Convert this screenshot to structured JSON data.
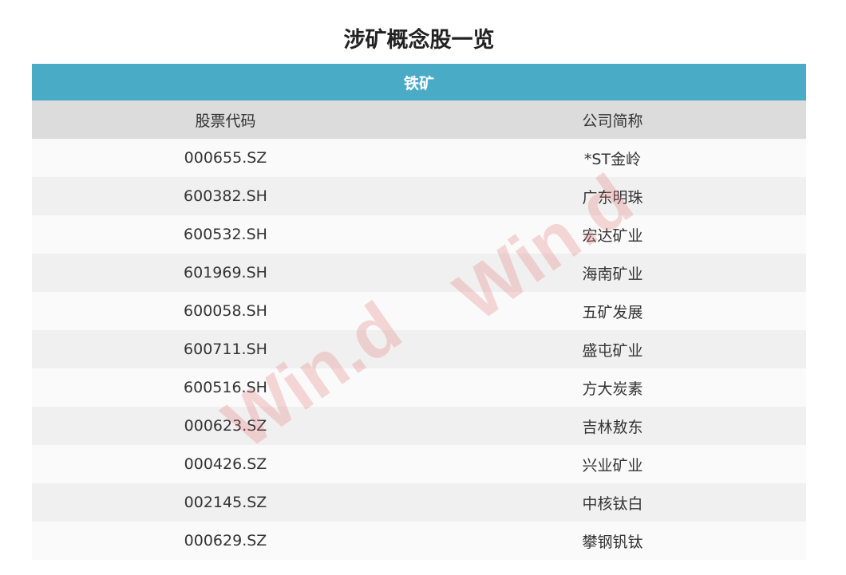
{
  "title": "涉矿概念股一览",
  "category": "铁矿",
  "columns": [
    "股票代码",
    "公司简称"
  ],
  "rows": [
    [
      "000655.SZ",
      "*ST金岭"
    ],
    [
      "600382.SH",
      "广东明珠"
    ],
    [
      "600532.SH",
      "宏达矿业"
    ],
    [
      "601969.SH",
      "海南矿业"
    ],
    [
      "600058.SH",
      "五矿发展"
    ],
    [
      "600711.SH",
      "盛屯矿业"
    ],
    [
      "600516.SH",
      "方大炭素"
    ],
    [
      "000623.SZ",
      "吉林敖东"
    ],
    [
      "000426.SZ",
      "兴业矿业"
    ],
    [
      "002145.SZ",
      "中核钛白"
    ],
    [
      "000629.SZ",
      "攀钢钒钛"
    ]
  ],
  "watermark": "Win.d",
  "colors": {
    "band": "#4aabc6",
    "header": "#dcdcdc"
  }
}
